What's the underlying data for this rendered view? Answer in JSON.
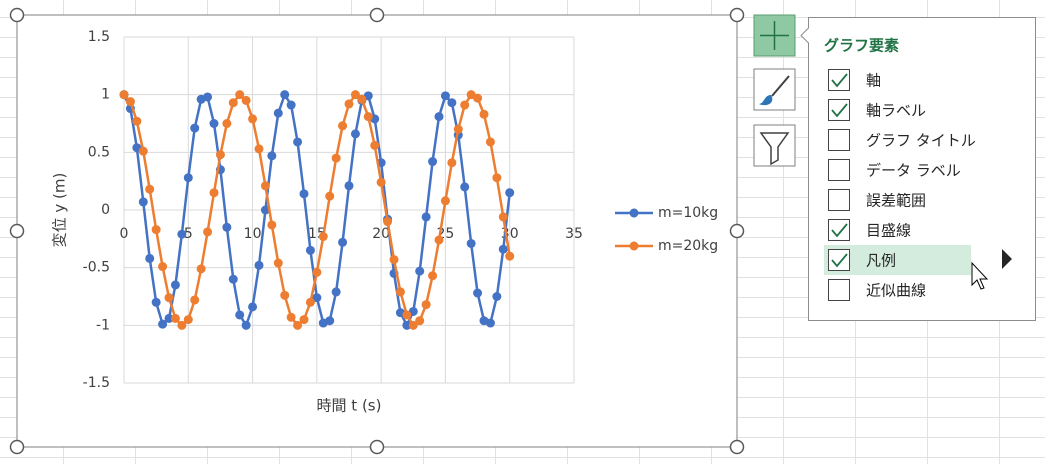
{
  "chart_data": {
    "type": "line",
    "x_label": "時間 t (s)",
    "y_label": "変位 y (m)",
    "x": [
      0,
      0.5,
      1,
      1.5,
      2,
      2.5,
      3,
      3.5,
      4,
      4.5,
      5,
      5.5,
      6,
      6.5,
      7,
      7.5,
      8,
      8.5,
      9,
      9.5,
      10,
      10.5,
      11,
      11.5,
      12,
      12.5,
      13,
      13.5,
      14,
      14.5,
      15,
      15.5,
      16,
      16.5,
      17,
      17.5,
      18,
      18.5,
      19,
      19.5,
      20,
      20.5,
      21,
      21.5,
      22,
      22.5,
      23,
      23.5,
      24,
      24.5,
      25,
      25.5,
      26,
      26.5,
      27,
      27.5,
      28,
      28.5,
      29,
      29.5,
      30
    ],
    "series": [
      {
        "name": "m=10kg",
        "color": "#4472C4",
        "values": [
          1,
          0.88,
          0.54,
          0.07,
          -0.42,
          -0.8,
          -0.99,
          -0.94,
          -0.65,
          -0.21,
          0.28,
          0.71,
          0.96,
          0.98,
          0.75,
          0.35,
          -0.15,
          -0.6,
          -0.91,
          -1,
          -0.84,
          -0.48,
          0,
          0.47,
          0.84,
          1,
          0.91,
          0.59,
          0.14,
          -0.35,
          -0.76,
          -0.98,
          -0.96,
          -0.71,
          -0.28,
          0.21,
          0.66,
          0.95,
          0.99,
          0.79,
          0.41,
          -0.08,
          -0.55,
          -0.89,
          -1,
          -0.88,
          -0.53,
          -0.06,
          0.42,
          0.81,
          0.99,
          0.93,
          0.65,
          0.2,
          -0.29,
          -0.72,
          -0.96,
          -0.98,
          -0.75,
          -0.34,
          0.15
        ]
      },
      {
        "name": "m=20kg",
        "color": "#ED7D31",
        "values": [
          1,
          0.94,
          0.77,
          0.51,
          0.18,
          -0.17,
          -0.49,
          -0.76,
          -0.94,
          -1,
          -0.95,
          -0.78,
          -0.51,
          -0.19,
          0.15,
          0.48,
          0.75,
          0.93,
          1,
          0.95,
          0.79,
          0.53,
          0.21,
          -0.13,
          -0.46,
          -0.74,
          -0.93,
          -1,
          -0.95,
          -0.8,
          -0.54,
          -0.23,
          0.12,
          0.45,
          0.73,
          0.92,
          1,
          0.96,
          0.81,
          0.56,
          0.24,
          -0.1,
          -0.43,
          -0.71,
          -0.91,
          -1,
          -0.96,
          -0.82,
          -0.57,
          -0.26,
          0.08,
          0.41,
          0.7,
          0.91,
          1,
          0.97,
          0.83,
          0.59,
          0.28,
          -0.06,
          -0.4
        ]
      }
    ],
    "xlim": [
      0,
      35
    ],
    "xticks": [
      0,
      5,
      10,
      15,
      20,
      25,
      30,
      35
    ],
    "ylim": [
      -1.5,
      1.5
    ],
    "yticks": [
      -1.5,
      -1,
      -0.5,
      0,
      0.5,
      1,
      1.5
    ],
    "grid": true,
    "legend": "right"
  },
  "panel": {
    "title": "グラフ要素",
    "items": [
      {
        "label": "軸",
        "checked": true
      },
      {
        "label": "軸ラベル",
        "checked": true
      },
      {
        "label": "グラフ タイトル",
        "checked": false
      },
      {
        "label": "データ ラベル",
        "checked": false
      },
      {
        "label": "誤差範囲",
        "checked": false
      },
      {
        "label": "目盛線",
        "checked": true
      },
      {
        "label": "凡例",
        "checked": true
      },
      {
        "label": "近似曲線",
        "checked": false
      }
    ]
  }
}
